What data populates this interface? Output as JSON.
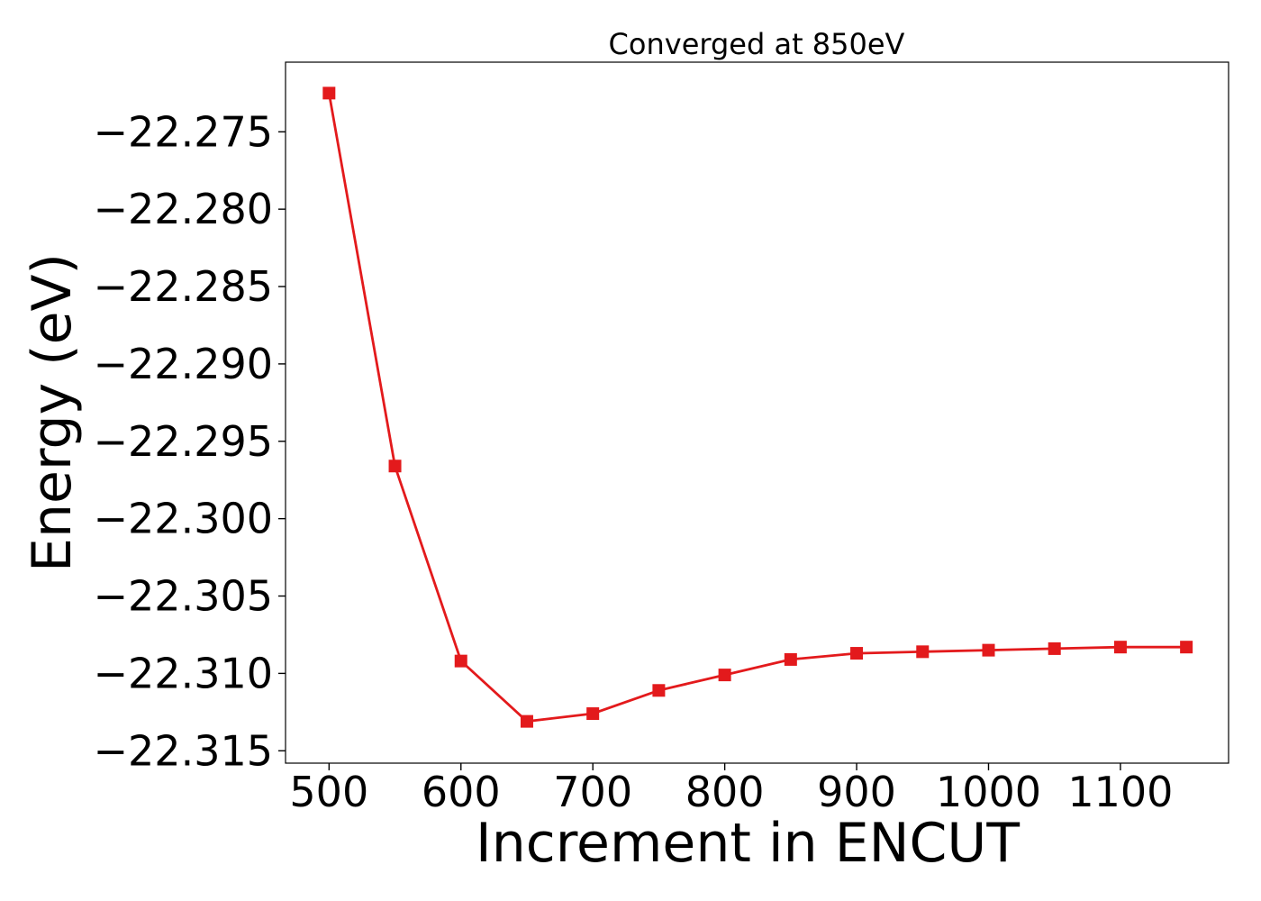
{
  "chart_data": {
    "type": "line",
    "title": "Converged at 850eV",
    "xlabel": "Increment in ENCUT",
    "ylabel": "Energy (eV)",
    "x": [
      500,
      550,
      600,
      650,
      700,
      750,
      800,
      850,
      900,
      950,
      1000,
      1050,
      1100,
      1150
    ],
    "series": [
      {
        "values": [
          -22.2725,
          -22.2966,
          -22.3092,
          -22.3131,
          -22.3126,
          -22.3111,
          -22.3101,
          -22.3091,
          -22.3087,
          -22.3086,
          -22.3085,
          -22.3084,
          -22.3083,
          -22.3083
        ],
        "color": "#e31a1c",
        "marker": "square"
      }
    ],
    "xlim": [
      467,
      1182
    ],
    "ylim": [
      -22.3158,
      -22.2705
    ],
    "xticks": [
      500,
      600,
      700,
      800,
      900,
      1000,
      1100
    ],
    "xtick_labels": [
      "500",
      "600",
      "700",
      "800",
      "900",
      "1000",
      "1100"
    ],
    "yticks": [
      -22.315,
      -22.31,
      -22.305,
      -22.3,
      -22.295,
      -22.29,
      -22.285,
      -22.28,
      -22.275
    ],
    "ytick_labels": [
      "−22.315",
      "−22.310",
      "−22.305",
      "−22.300",
      "−22.295",
      "−22.290",
      "−22.285",
      "−22.280",
      "−22.275"
    ],
    "grid": false,
    "legend": "none"
  }
}
